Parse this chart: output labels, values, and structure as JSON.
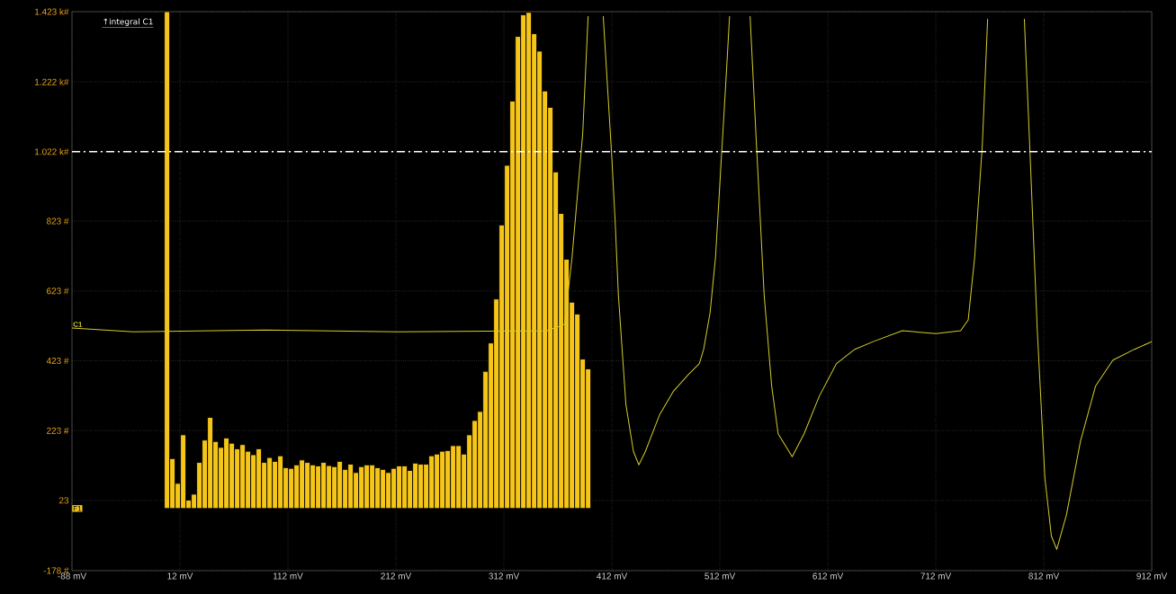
{
  "chart_data": {
    "type": "histogram",
    "annotations": [
      "↑integral C1"
    ],
    "xlim": [
      -88,
      912
    ],
    "xticks": [
      {
        "value": -88,
        "label": "-88 mV"
      },
      {
        "value": 12,
        "label": "12 mV"
      },
      {
        "value": 112,
        "label": "112 mV"
      },
      {
        "value": 212,
        "label": "212 mV"
      },
      {
        "value": 312,
        "label": "312 mV"
      },
      {
        "value": 412,
        "label": "412 mV"
      },
      {
        "value": 512,
        "label": "512 mV"
      },
      {
        "value": 612,
        "label": "612 mV"
      },
      {
        "value": 712,
        "label": "712 mV"
      },
      {
        "value": 812,
        "label": "812 mV"
      },
      {
        "value": 912,
        "label": "912 mV"
      }
    ],
    "ylim": [
      -178,
      1423
    ],
    "yticks": [
      {
        "value": -178,
        "label": "-178 #"
      },
      {
        "value": 23,
        "label": "23"
      },
      {
        "value": 223,
        "label": "223 #"
      },
      {
        "value": 423,
        "label": "423 #"
      },
      {
        "value": 623,
        "label": "623 #"
      },
      {
        "value": 823,
        "label": "823 #"
      },
      {
        "value": 1022,
        "label": "1.022 k#"
      },
      {
        "value": 1222,
        "label": "1.222 k#"
      },
      {
        "value": 1423,
        "label": "1.423 k#"
      }
    ],
    "grid": true,
    "ref_lines": [
      {
        "axis": "y",
        "value": 1022,
        "color": "#ffffff",
        "line_style": "dashed"
      }
    ],
    "series": [
      {
        "name": "F1",
        "color": "#f5c518",
        "bins": [
          -2.5,
          2.5,
          7.5,
          12.5,
          17.5,
          22.5,
          27.5,
          32.5,
          37.5,
          42.5,
          47.5,
          52.5,
          57.5,
          62.5,
          67.5,
          72.5,
          77.5,
          82.5,
          87.5,
          92.5,
          97.5,
          102.5,
          107.5,
          112.5,
          117.5,
          122.5,
          127.5,
          132.5,
          137.5,
          142.5,
          147.5,
          152.5,
          157.5,
          162.5,
          167.5,
          172.5,
          177.5,
          182.5,
          187.5,
          192.5,
          197.5,
          202.5,
          207.5,
          212.5,
          217.5,
          222.5,
          227.5,
          232.5,
          237.5,
          242.5,
          247.5,
          252.5,
          257.5,
          262.5,
          267.5,
          272.5,
          277.5,
          282.5,
          287.5,
          292.5,
          297.5,
          302.5,
          307.5,
          312.5,
          317.5,
          322.5,
          327.5,
          332.5,
          337.5,
          342.5,
          347.5,
          352.5,
          357.5,
          362.5,
          367.5,
          372.5,
          377.5,
          382.5,
          387.5,
          392.5
        ],
        "values": [
          1423,
          143,
          72,
          211,
          24,
          41,
          132,
          196,
          261,
          192,
          175,
          202,
          187,
          171,
          183,
          164,
          154,
          171,
          132,
          146,
          135,
          151,
          117,
          115,
          125,
          139,
          132,
          125,
          122,
          132,
          123,
          120,
          135,
          112,
          127,
          103,
          120,
          125,
          125,
          117,
          112,
          103,
          115,
          122,
          122,
          109,
          130,
          127,
          127,
          151,
          156,
          164,
          166,
          180,
          180,
          156,
          211,
          252,
          278,
          393,
          474,
          600,
          812,
          983,
          1167,
          1352,
          1414,
          1421,
          1360,
          1310,
          1196,
          1149,
          964,
          845,
          714,
          591,
          557,
          428,
          400
        ]
      },
      {
        "name": "C1",
        "type": "line",
        "color": "#d4cc2c",
        "x": [
          -88,
          -31,
          91,
          214,
          352,
          368,
          375,
          385,
          390,
          397,
          404,
          412,
          415,
          418,
          425,
          432,
          437,
          443,
          456,
          469,
          483,
          493,
          497,
          503,
          508,
          513,
          518,
          521,
          530,
          540,
          546,
          553,
          560,
          566,
          579,
          590,
          604,
          620,
          637,
          654,
          681,
          712,
          735,
          742,
          748,
          755,
          760,
          777,
          794,
          799,
          806,
          813,
          819,
          824,
          833,
          846,
          860,
          876,
          896,
          912
        ],
        "values": [
          517,
          506,
          511,
          506,
          509,
          527,
          715,
          1074,
          1410,
          null,
          1410,
          1003,
          825,
          613,
          298,
          163,
          125,
          163,
          267,
          336,
          384,
          415,
          456,
          562,
          720,
          982,
          1245,
          1410,
          null,
          1410,
          1036,
          613,
          351,
          214,
          148,
          214,
          321,
          415,
          456,
          478,
          509,
          501,
          509,
          540,
          720,
          1036,
          1402,
          null,
          1402,
          1036,
          509,
          89,
          -79,
          -117,
          -18,
          193,
          351,
          425,
          456,
          478
        ]
      }
    ]
  }
}
